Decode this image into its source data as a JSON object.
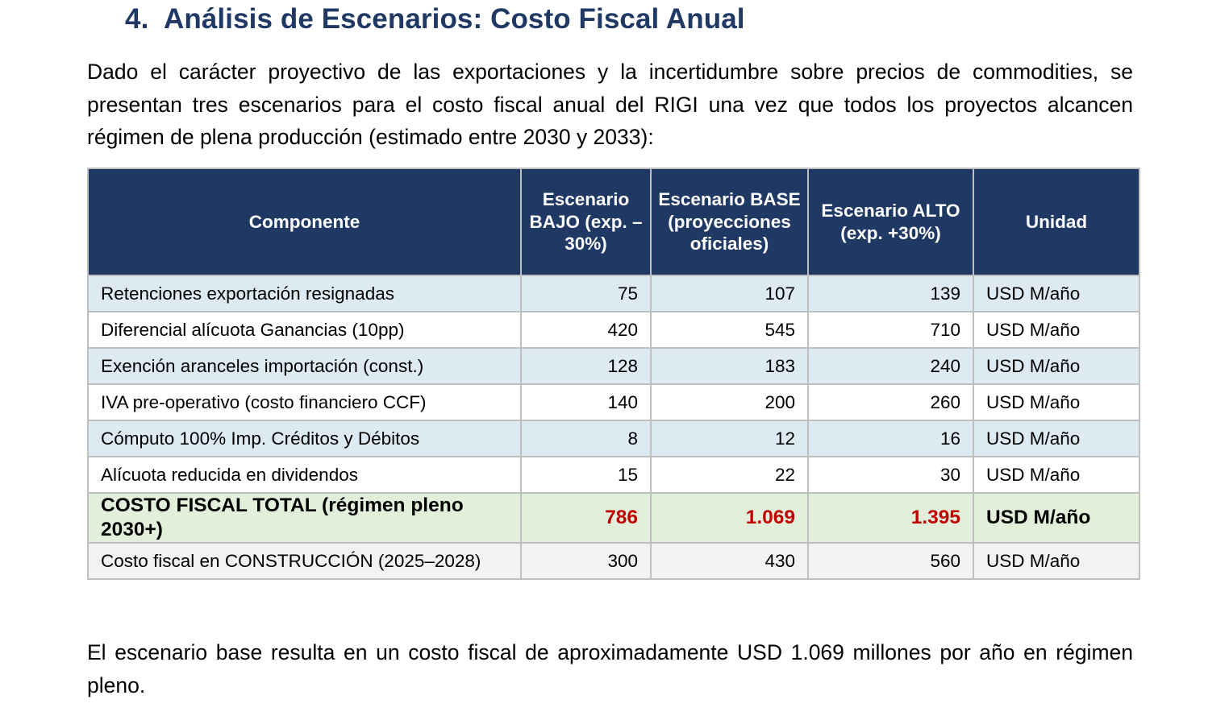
{
  "heading": {
    "number": "4.",
    "title": "Análisis de Escenarios: Costo Fiscal Anual"
  },
  "intro": "Dado el carácter proyectivo de las exportaciones y la incertidumbre sobre precios de commodities, se presentan tres escenarios para el costo fiscal anual del RIGI una vez que todos los proyectos alcancen régimen de plena producción (estimado entre 2030 y 2033):",
  "table": {
    "headers": [
      "Componente",
      "Escenario BAJO (exp. –30%)",
      "Escenario BASE (proyecciones oficiales)",
      "Escenario ALTO (exp. +30%)",
      "Unidad"
    ],
    "rows": [
      [
        "Retenciones exportación resignadas",
        "75",
        "107",
        "139",
        "USD M/año"
      ],
      [
        "Diferencial alícuota Ganancias (10pp)",
        "420",
        "545",
        "710",
        "USD M/año"
      ],
      [
        "Exención aranceles importación (const.)",
        "128",
        "183",
        "240",
        "USD M/año"
      ],
      [
        "IVA pre-operativo (costo financiero CCF)",
        "140",
        "200",
        "260",
        "USD M/año"
      ],
      [
        "Cómputo 100% Imp. Créditos y Débitos",
        "8",
        "12",
        "16",
        "USD M/año"
      ],
      [
        "Alícuota reducida en dividendos",
        "15",
        "22",
        "30",
        "USD M/año"
      ],
      [
        "COSTO FISCAL TOTAL (régimen pleno 2030+)",
        "786",
        "1.069",
        "1.395",
        "USD M/año"
      ],
      [
        "Costo fiscal en CONSTRUCCIÓN (2025–2028)",
        "300",
        "430",
        "560",
        "USD M/año"
      ]
    ]
  },
  "outro": "El escenario base resulta en un costo fiscal de aproximadamente USD 1.069 millones por año en régimen pleno.",
  "colors": {
    "heading": "#1f3864",
    "header_bg": "#1f3864",
    "row_shaded": "#deeaf1",
    "total_bg": "#e2efda",
    "total_values": "#c00000",
    "construction_bg": "#f2f2f2"
  }
}
